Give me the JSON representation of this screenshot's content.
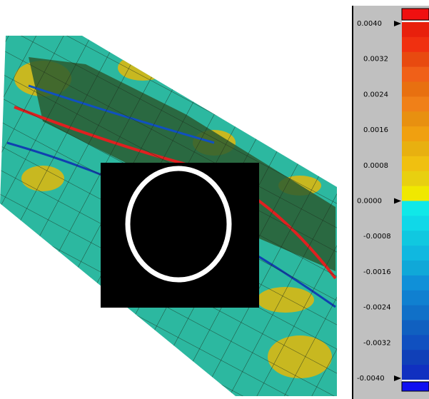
{
  "colorbar": {
    "labels": [
      "0.0040",
      "0.0032",
      "0.0024",
      "0.0016",
      "0.0008",
      "0.0000",
      "-0.0008",
      "-0.0016",
      "-0.0024",
      "-0.0032",
      "-0.0040"
    ]
  }
}
